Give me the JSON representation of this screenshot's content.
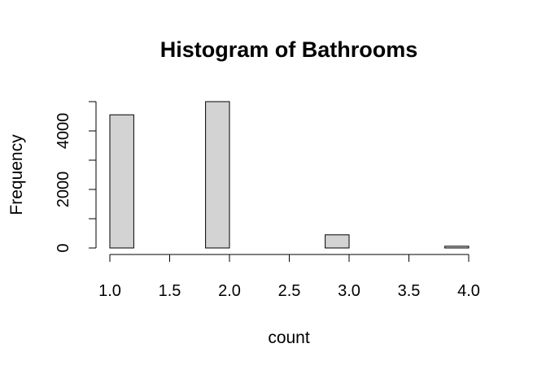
{
  "chart_data": {
    "type": "bar",
    "title": "Histogram of Bathrooms",
    "xlabel": "count",
    "ylabel": "Frequency",
    "bins": [
      {
        "x0": 1.0,
        "x1": 1.2,
        "value": 4550
      },
      {
        "x0": 1.2,
        "x1": 1.4,
        "value": 0
      },
      {
        "x0": 1.4,
        "x1": 1.6,
        "value": 0
      },
      {
        "x0": 1.6,
        "x1": 1.8,
        "value": 0
      },
      {
        "x0": 1.8,
        "x1": 2.0,
        "value": 5000
      },
      {
        "x0": 2.0,
        "x1": 2.2,
        "value": 0
      },
      {
        "x0": 2.2,
        "x1": 2.4,
        "value": 0
      },
      {
        "x0": 2.4,
        "x1": 2.6,
        "value": 0
      },
      {
        "x0": 2.6,
        "x1": 2.8,
        "value": 0
      },
      {
        "x0": 2.8,
        "x1": 3.0,
        "value": 450
      },
      {
        "x0": 3.0,
        "x1": 3.2,
        "value": 0
      },
      {
        "x0": 3.2,
        "x1": 3.4,
        "value": 0
      },
      {
        "x0": 3.4,
        "x1": 3.6,
        "value": 0
      },
      {
        "x0": 3.6,
        "x1": 3.8,
        "value": 0
      },
      {
        "x0": 3.8,
        "x1": 4.0,
        "value": 60
      }
    ],
    "xlim": [
      1.0,
      4.0
    ],
    "ylim": [
      0,
      5000
    ],
    "x_ticks": [
      "1.0",
      "1.5",
      "2.0",
      "2.5",
      "3.0",
      "3.5",
      "4.0"
    ],
    "y_ticks": [
      0,
      1000,
      2000,
      3000,
      4000,
      5000
    ],
    "y_tick_labels": [
      "0",
      "",
      "2000",
      "",
      "4000",
      ""
    ],
    "grid": false,
    "colors": {
      "bar_fill": "#d3d3d3",
      "bar_stroke": "#000000"
    }
  }
}
